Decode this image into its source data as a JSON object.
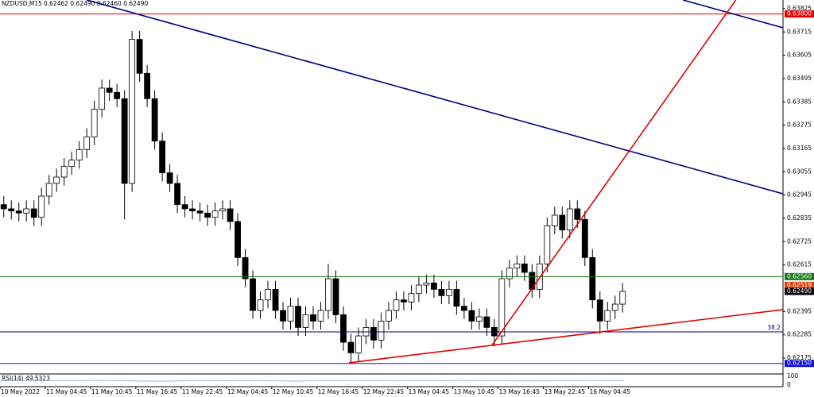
{
  "chart_data": {
    "type": "candlestick",
    "header": {
      "symbol": "NZDUSD,M15",
      "quote": "0.62462 0.62490 0.62460 0.62490"
    },
    "xlim": [
      0,
      415
    ],
    "ylim": [
      0.62104,
      0.63866
    ],
    "yticks": [
      0.63825,
      0.63715,
      0.63605,
      0.63495,
      0.63385,
      0.63275,
      0.63165,
      0.63055,
      0.62945,
      0.62835,
      0.62725,
      0.62615,
      0.62395,
      0.62285,
      0.62175
    ],
    "xticks": [
      {
        "value": 0,
        "label": "10 May 2022"
      },
      {
        "value": 24,
        "label": "11 May 04:45"
      },
      {
        "value": 48,
        "label": "11 May 10:45"
      },
      {
        "value": 72,
        "label": "11 May 16:45"
      },
      {
        "value": 96,
        "label": "11 May 22:45"
      },
      {
        "value": 120,
        "label": "12 May 04:45"
      },
      {
        "value": 144,
        "label": "12 May 10:45"
      },
      {
        "value": 168,
        "label": "12 May 16:45"
      },
      {
        "value": 192,
        "label": "12 May 22:45"
      },
      {
        "value": 216,
        "label": "13 May 04:45"
      },
      {
        "value": 240,
        "label": "13 May 10:45"
      },
      {
        "value": 264,
        "label": "13 May 16:45"
      },
      {
        "value": 288,
        "label": "13 May 22:45"
      },
      {
        "value": 312,
        "label": "16 May 04:45"
      }
    ],
    "x": [
      2,
      6,
      10,
      14,
      18,
      22,
      26,
      30,
      34,
      38,
      42,
      46,
      50,
      54,
      58,
      62,
      66,
      70,
      74,
      78,
      82,
      86,
      90,
      94,
      98,
      102,
      106,
      110,
      114,
      118,
      122,
      126,
      130,
      134,
      138,
      142,
      146,
      150,
      154,
      158,
      162,
      166,
      170,
      174,
      178,
      182,
      186,
      190,
      194,
      198,
      202,
      206,
      210,
      214,
      218,
      222,
      226,
      230,
      234,
      238,
      242,
      246,
      250,
      254,
      258,
      262,
      266,
      270,
      274,
      278,
      282,
      286,
      290,
      294,
      298,
      302,
      306,
      310,
      314,
      318,
      322,
      326,
      330
    ],
    "open": [
      0.629,
      0.6288,
      0.6287,
      0.6286,
      0.6288,
      0.6284,
      0.6294,
      0.63,
      0.6303,
      0.6308,
      0.6311,
      0.6316,
      0.6322,
      0.6335,
      0.6345,
      0.6343,
      0.634,
      0.63,
      0.6368,
      0.6352,
      0.634,
      0.632,
      0.6305,
      0.63,
      0.629,
      0.6288,
      0.6287,
      0.6286,
      0.6284,
      0.6287,
      0.6288,
      0.6282,
      0.6265,
      0.6255,
      0.624,
      0.6245,
      0.625,
      0.624,
      0.6235,
      0.6242,
      0.6232,
      0.6238,
      0.6235,
      0.624,
      0.6255,
      0.6238,
      0.6225,
      0.622,
      0.6228,
      0.6232,
      0.6226,
      0.6235,
      0.624,
      0.6245,
      0.6244,
      0.6248,
      0.6252,
      0.6253,
      0.625,
      0.6247,
      0.625,
      0.6242,
      0.624,
      0.6235,
      0.6237,
      0.6232,
      0.6228,
      0.6255,
      0.626,
      0.6262,
      0.6258,
      0.625,
      0.6262,
      0.628,
      0.6285,
      0.6278,
      0.6288,
      0.6283,
      0.6265,
      0.6245,
      0.6235,
      0.624,
      0.6243
    ],
    "high": [
      0.6294,
      0.6292,
      0.6291,
      0.6292,
      0.6292,
      0.6298,
      0.6304,
      0.6307,
      0.6312,
      0.6315,
      0.632,
      0.6326,
      0.6339,
      0.6349,
      0.6349,
      0.6347,
      0.6344,
      0.6372,
      0.6372,
      0.6356,
      0.6344,
      0.6324,
      0.6309,
      0.6304,
      0.6294,
      0.6292,
      0.6291,
      0.629,
      0.6291,
      0.6292,
      0.6292,
      0.6286,
      0.6269,
      0.6259,
      0.6249,
      0.6254,
      0.6254,
      0.6244,
      0.6246,
      0.6246,
      0.6242,
      0.6242,
      0.6244,
      0.6262,
      0.6259,
      0.6242,
      0.6229,
      0.6232,
      0.6236,
      0.6236,
      0.6239,
      0.6244,
      0.6249,
      0.6249,
      0.6252,
      0.6256,
      0.6257,
      0.6257,
      0.6254,
      0.6254,
      0.6254,
      0.6246,
      0.6244,
      0.6241,
      0.6241,
      0.6236,
      0.6259,
      0.6264,
      0.6266,
      0.6266,
      0.6262,
      0.6266,
      0.6284,
      0.6289,
      0.6289,
      0.6292,
      0.6292,
      0.6287,
      0.6269,
      0.6249,
      0.6244,
      0.6247,
      0.6253
    ],
    "low": [
      0.6284,
      0.6283,
      0.6282,
      0.6282,
      0.628,
      0.628,
      0.629,
      0.6296,
      0.6299,
      0.6304,
      0.6307,
      0.6312,
      0.6318,
      0.6331,
      0.6339,
      0.6336,
      0.6283,
      0.6296,
      0.6348,
      0.6336,
      0.6316,
      0.6301,
      0.6296,
      0.6286,
      0.6284,
      0.6283,
      0.6282,
      0.628,
      0.628,
      0.6283,
      0.6278,
      0.6261,
      0.6251,
      0.6236,
      0.6236,
      0.6241,
      0.6236,
      0.6231,
      0.6231,
      0.6228,
      0.6228,
      0.6231,
      0.6231,
      0.6236,
      0.6234,
      0.6221,
      0.6215,
      0.6216,
      0.6224,
      0.6222,
      0.6222,
      0.6231,
      0.6236,
      0.624,
      0.624,
      0.6244,
      0.6248,
      0.6246,
      0.6243,
      0.6243,
      0.6238,
      0.6236,
      0.6231,
      0.6231,
      0.6228,
      0.6223,
      0.6224,
      0.6251,
      0.6256,
      0.6254,
      0.6246,
      0.6246,
      0.6258,
      0.6276,
      0.6274,
      0.6274,
      0.6279,
      0.6261,
      0.6241,
      0.6229,
      0.6231,
      0.6236,
      0.6239
    ],
    "close": [
      0.6288,
      0.6287,
      0.6286,
      0.6288,
      0.6284,
      0.6294,
      0.63,
      0.6303,
      0.6308,
      0.6311,
      0.6316,
      0.6322,
      0.6335,
      0.6345,
      0.6343,
      0.634,
      0.63,
      0.6368,
      0.6352,
      0.634,
      0.632,
      0.6305,
      0.63,
      0.629,
      0.6288,
      0.6287,
      0.6286,
      0.6284,
      0.6287,
      0.6288,
      0.6282,
      0.6265,
      0.6255,
      0.624,
      0.6245,
      0.625,
      0.624,
      0.6235,
      0.6242,
      0.6232,
      0.6238,
      0.6235,
      0.624,
      0.6255,
      0.6238,
      0.6225,
      0.622,
      0.6228,
      0.6232,
      0.6226,
      0.6235,
      0.624,
      0.6245,
      0.6244,
      0.6248,
      0.6252,
      0.6253,
      0.625,
      0.6247,
      0.625,
      0.6242,
      0.624,
      0.6235,
      0.6237,
      0.6232,
      0.6228,
      0.6255,
      0.626,
      0.6262,
      0.6258,
      0.625,
      0.6262,
      0.628,
      0.6285,
      0.6278,
      0.6288,
      0.6283,
      0.6265,
      0.6245,
      0.6235,
      0.624,
      0.6243,
      0.6249
    ],
    "levels": [
      {
        "value": 0.638,
        "label": "0.63800",
        "color": "#e00000",
        "line": true
      },
      {
        "value": 0.6256,
        "label": "0.62560",
        "color": "#1a7a1a",
        "line": true
      },
      {
        "value": 0.62519,
        "label": "0.62519",
        "color": "#e04010",
        "line": false
      },
      {
        "value": 0.6249,
        "label": "0.62490",
        "color": "#000000",
        "line": false
      },
      {
        "value": 0.6215,
        "label": "0.62150",
        "color": "#1010d0",
        "line": true
      }
    ],
    "fibo": {
      "value": 0.62299,
      "label": "38.2",
      "color": "#000080"
    },
    "trend_lines": [
      {
        "color": "#000080",
        "x": [
          46,
          415
        ],
        "y": [
          0.63866,
          0.62951
        ]
      },
      {
        "color": "#000080",
        "x": [
          362,
          415
        ],
        "y": [
          0.63866,
          0.63735
        ]
      },
      {
        "color": "#e00000",
        "x": [
          261,
          390
        ],
        "y": [
          0.62239,
          0.63866
        ]
      },
      {
        "color": "#e00000",
        "x": [
          185,
          415
        ],
        "y": [
          0.62153,
          0.62404
        ]
      }
    ],
    "rsi": {
      "label": "RSI(14) 49.5323",
      "ylim": [
        0,
        100
      ],
      "yticks": [
        100,
        0
      ],
      "color": "#87a8d8",
      "values": [
        48,
        52,
        50,
        55,
        47,
        45,
        51,
        53,
        49,
        46,
        50,
        52,
        48,
        51,
        54,
        50,
        47,
        49,
        52,
        50
      ]
    }
  }
}
